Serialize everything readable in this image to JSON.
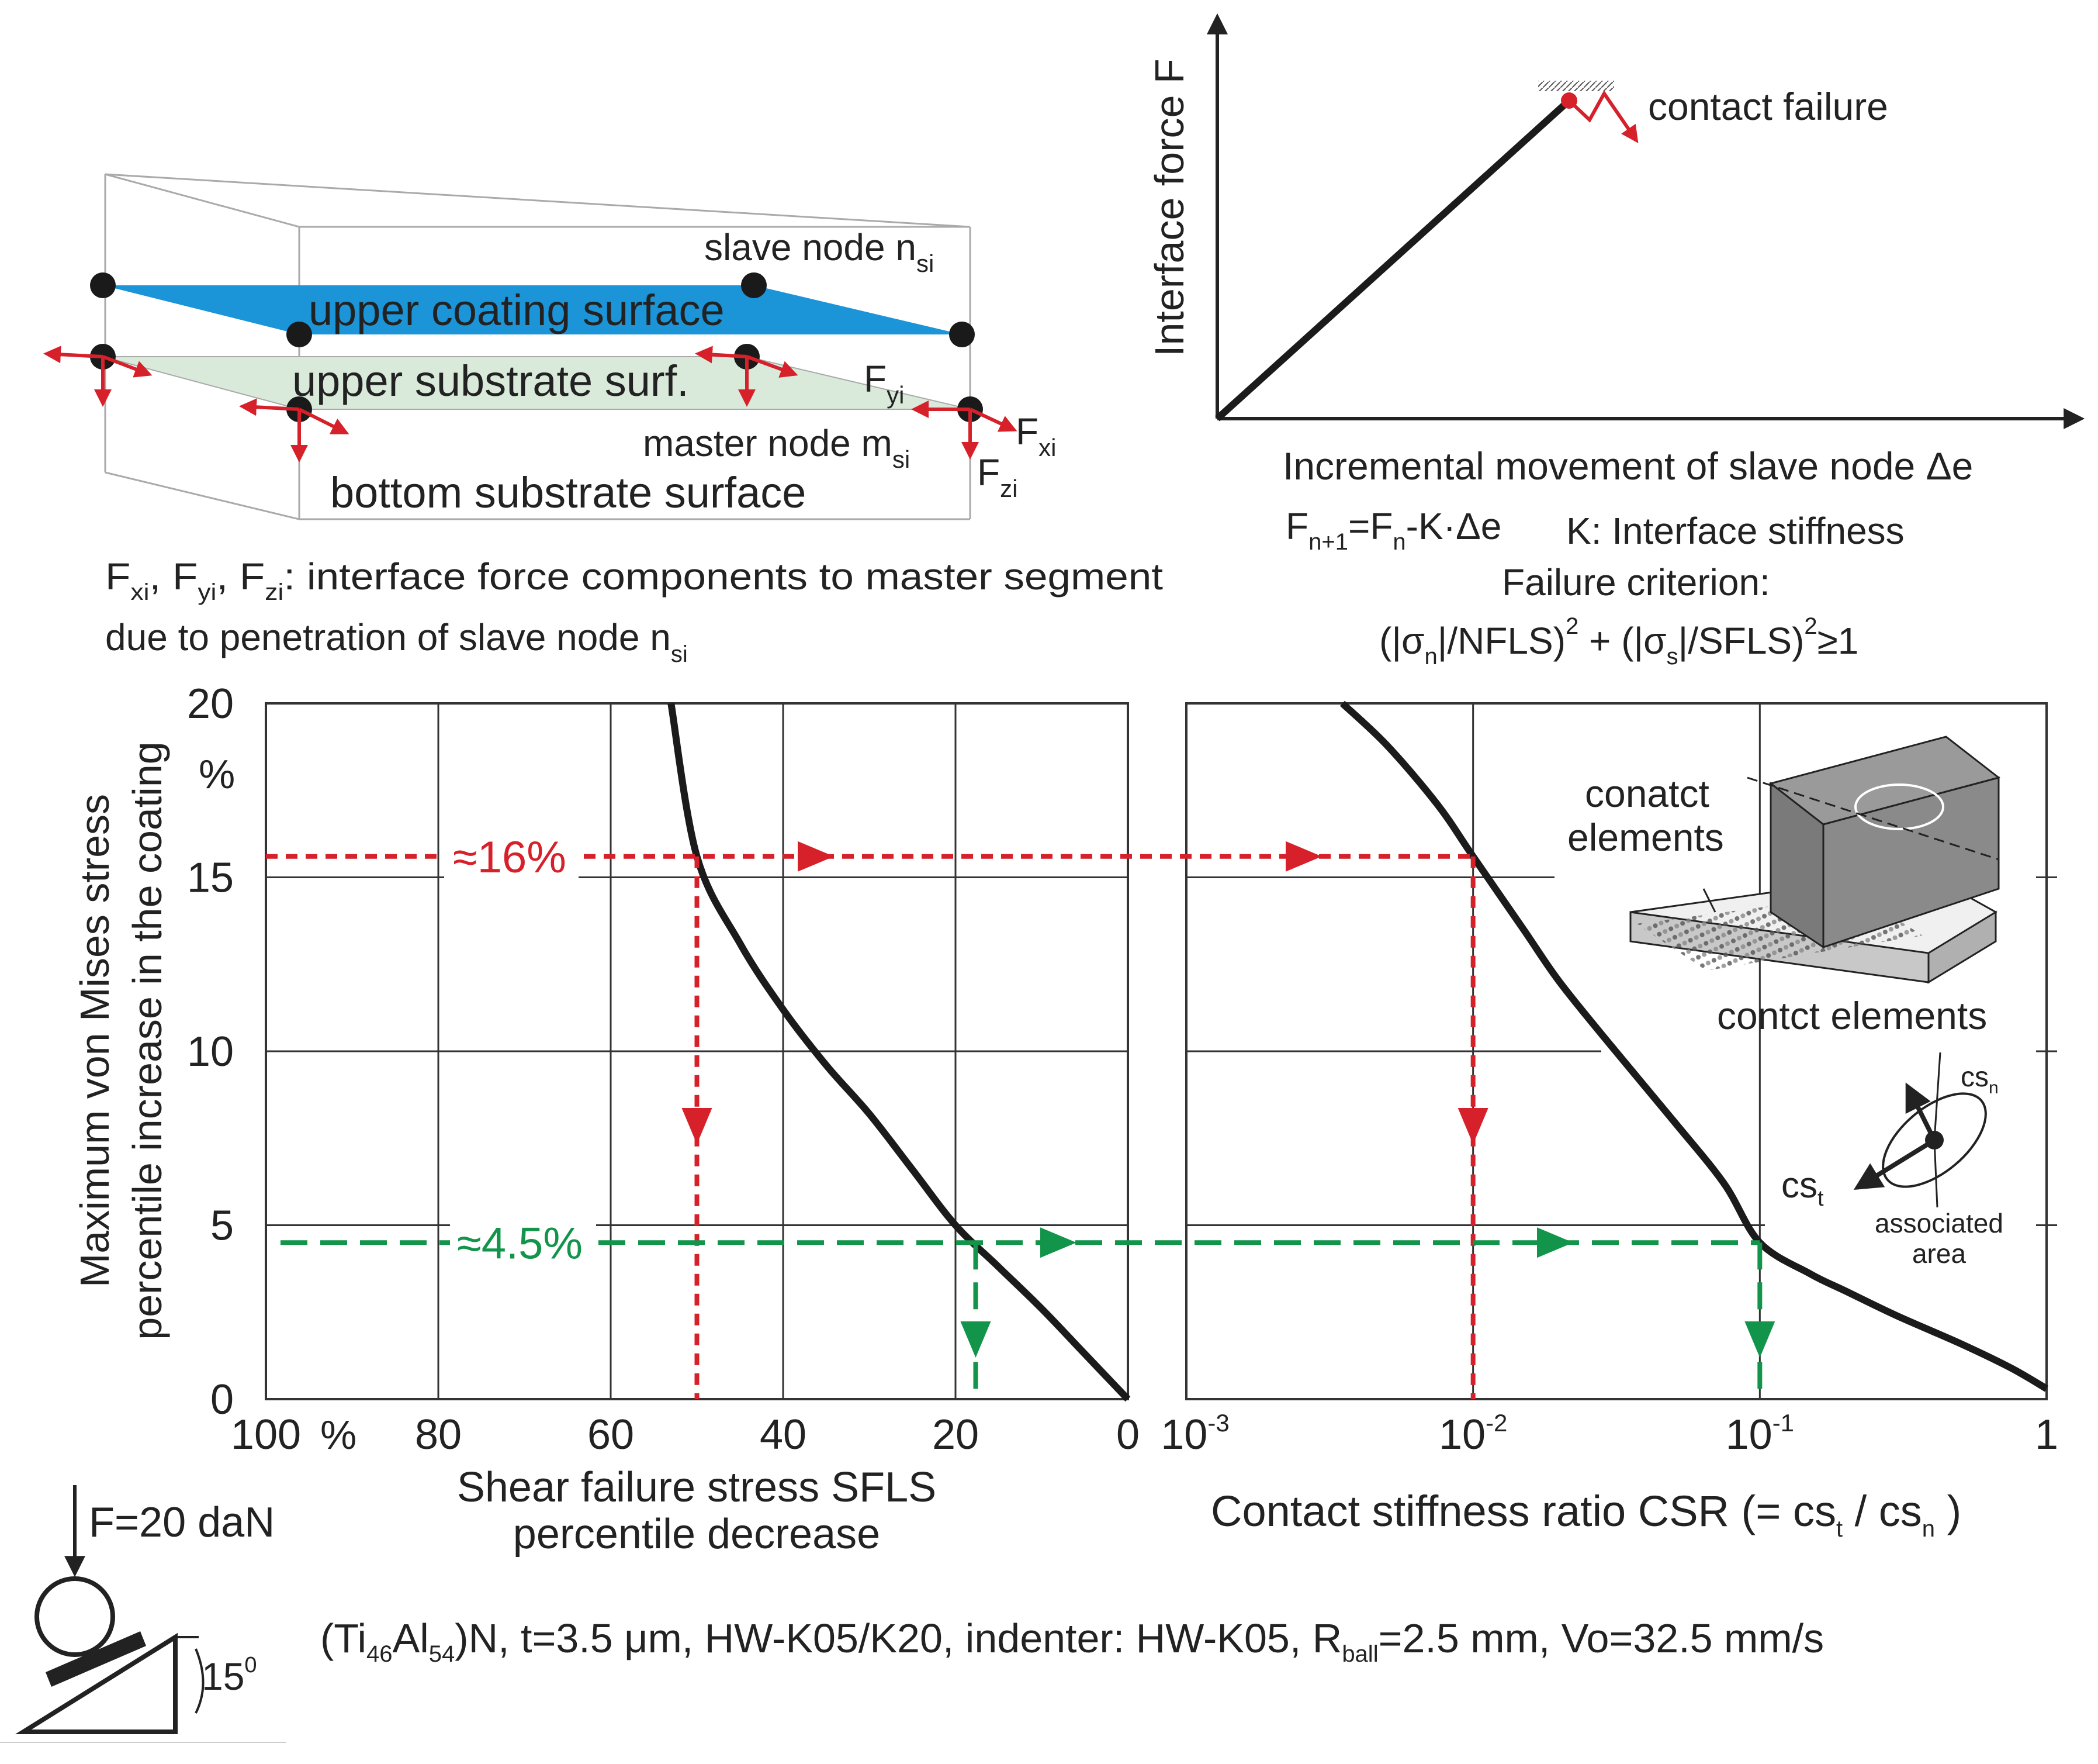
{
  "colors": {
    "ink": "#222222",
    "curve": "#1b1b1b",
    "red": "#d6202a",
    "green": "#12944a",
    "blue": "#1b94d8",
    "surface_green": "#d9eadb",
    "grid": "#333333"
  },
  "top_left": {
    "slave_node": "slave node n",
    "slave_node_sub": "si",
    "upper_coating": "upper coating surface",
    "upper_substrate": "upper substrate surf.",
    "fyi": "F",
    "fyi_sub": "yi",
    "master_node": "master node m",
    "master_node_sub": "si",
    "fxi": "F",
    "fxi_sub": "xi",
    "fzi": "F",
    "fzi_sub": "zi",
    "bottom_substrate": "bottom substrate surface",
    "caption_line1": "F, F, F: interface force components to master segment",
    "caption_line2": "due to penetration of slave node n"
  },
  "top_right": {
    "y_label": "Interface force F",
    "x_label": "Incremental movement of slave node Δe",
    "contact_failure": "contact failure",
    "formula": "Fn+1=Fn-K·Δe",
    "stiffness": "K: Interface stiffness",
    "failure_criterion": "Failure criterion:",
    "criterion_formula": "(|σn|/NFLS)² + (|σs|/SFLS)²≥1"
  },
  "chart_data": [
    {
      "type": "line",
      "title": "",
      "xlabel": "Shear failure stress SFLS",
      "xlabel2": "percentile decrease",
      "ylabel": "Maximum von Mises stress",
      "ylabel2": "percentile increase in the coating",
      "xlim": [
        100,
        0
      ],
      "ylim": [
        0,
        20
      ],
      "x_ticks": [
        "100",
        "80",
        "60",
        "40",
        "20",
        "0"
      ],
      "x_unit": "%",
      "y_ticks": [
        "0",
        "5",
        "10",
        "15",
        "20"
      ],
      "y_unit": "%",
      "series": [
        {
          "name": "max von Mises stress increase vs SFLS decrease",
          "x": [
            53,
            50,
            45,
            40,
            35,
            30,
            25,
            20,
            15,
            10,
            5,
            0
          ],
          "y": [
            20,
            15.6,
            13.1,
            11.2,
            9.6,
            8.2,
            6.6,
            5.0,
            3.8,
            2.6,
            1.3,
            0
          ]
        }
      ],
      "annotations": [
        {
          "label": "≈16%",
          "y": 15.6,
          "x": 50,
          "color": "red"
        },
        {
          "label": "≈4.5%",
          "y": 4.5,
          "x": 18,
          "color": "green"
        }
      ]
    },
    {
      "type": "line",
      "title": "",
      "xlabel": "Contact stiffness ratio CSR (= cs / cs )",
      "xscale": "log",
      "xlim": [
        0.001,
        1
      ],
      "ylim": [
        0,
        20
      ],
      "x_ticks": [
        "10",
        "10",
        "10",
        "1"
      ],
      "x_tick_exponents": [
        "-3",
        "-2",
        "-1",
        ""
      ],
      "series": [
        {
          "name": "max von Mises stress increase vs CSR",
          "x": [
            0.0035,
            0.005,
            0.0075,
            0.01,
            0.015,
            0.02,
            0.03,
            0.05,
            0.075,
            0.1,
            0.15,
            0.2,
            0.3,
            0.5,
            0.75,
            1.0
          ],
          "y": [
            20,
            18.8,
            17.1,
            15.6,
            13.5,
            12.0,
            10.2,
            8.0,
            6.2,
            4.5,
            3.6,
            3.1,
            2.4,
            1.6,
            0.9,
            0.3
          ]
        }
      ],
      "annotations": [
        {
          "label": "",
          "y": 15.6,
          "x": 0.01,
          "color": "red"
        },
        {
          "label": "",
          "y": 4.5,
          "x": 0.1,
          "color": "green"
        }
      ],
      "inset_labels": {
        "conatct": "conatct",
        "elements": "elements",
        "contct_elements": "contct elements",
        "csn": "cs",
        "cst": "cs",
        "associated": "associated",
        "area": "area"
      }
    }
  ],
  "bottom": {
    "force": "F=20 daN",
    "angle": "15",
    "caption": "(Ti46Al54)N, t=3.5 μm, HW-K05/K20, indenter: HW-K05, Rball=2.5 mm, Vo=32.5 mm/s"
  }
}
